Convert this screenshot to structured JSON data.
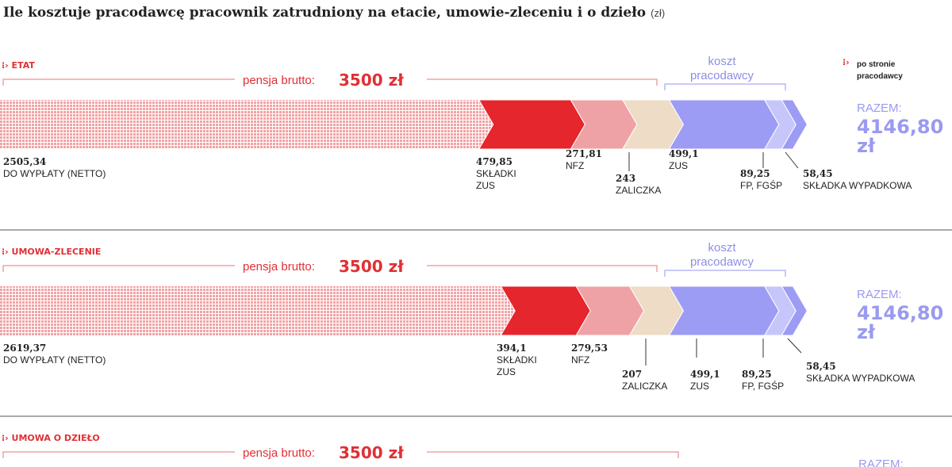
{
  "title": "Ile kosztuje pracodawcę pracownik zatrudniony na etacie, umowie-zleceniu i o dzieło",
  "unit": "(zł)",
  "legend": {
    "line1": "po stronie",
    "line2": "pracodawcy"
  },
  "brutto_label": "pensja brutto:",
  "brutto_value": "3500 zł",
  "koszt_label": [
    "koszt",
    "pracodawcy"
  ],
  "razem_label": "RAZEM:",
  "colors": {
    "netto": "#f1b9bb",
    "zus": "#e5262c",
    "nfz": "#efa2a6",
    "zaliczka": "#eedcc7",
    "pracodawca_zus": "#9c9cf5",
    "fp": "#c6c6fb",
    "wypadkowa": "#9c9cf5",
    "accent": "#e03035"
  },
  "chart_data": [
    {
      "type": "bar",
      "section": "ETAT",
      "total": "4146,80",
      "total_unit": "zł",
      "segments": [
        {
          "key": "netto",
          "value": "2505,34",
          "label": [
            "DO WYPŁATY (NETTO)"
          ]
        },
        {
          "key": "zus",
          "value": "479,85",
          "label": [
            "SKŁADKI",
            "ZUS"
          ]
        },
        {
          "key": "nfz",
          "value": "271,81",
          "label": [
            "NFZ"
          ]
        },
        {
          "key": "zaliczka",
          "value": "243",
          "label": [
            "ZALICZKA"
          ]
        },
        {
          "key": "pracodawca_zus",
          "value": "499,1",
          "label": [
            "ZUS"
          ]
        },
        {
          "key": "fp",
          "value": "89,25",
          "label": [
            "FP, FGŚP"
          ]
        },
        {
          "key": "wypadkowa",
          "value": "58,45",
          "label": [
            "SKŁADKA WYPADKOWA"
          ]
        }
      ]
    },
    {
      "type": "bar",
      "section": "UMOWA-ZLECENIE",
      "total": "4146,80",
      "total_unit": "zł",
      "segments": [
        {
          "key": "netto",
          "value": "2619,37",
          "label": [
            "DO WYPŁATY (NETTO)"
          ]
        },
        {
          "key": "zus",
          "value": "394,1",
          "label": [
            "SKŁADKI",
            "ZUS"
          ]
        },
        {
          "key": "nfz",
          "value": "279,53",
          "label": [
            "NFZ"
          ]
        },
        {
          "key": "zaliczka",
          "value": "207",
          "label": [
            "ZALICZKA"
          ]
        },
        {
          "key": "pracodawca_zus",
          "value": "499,1",
          "label": [
            "ZUS"
          ]
        },
        {
          "key": "fp",
          "value": "89,25",
          "label": [
            "FP, FGŚP"
          ]
        },
        {
          "key": "wypadkowa",
          "value": "58,45",
          "label": [
            "SKŁADKA WYPADKOWA"
          ]
        }
      ]
    },
    {
      "type": "bar",
      "section": "UMOWA O DZIEŁO",
      "total": "",
      "partial_label": "RAZEM:",
      "segments": []
    }
  ]
}
